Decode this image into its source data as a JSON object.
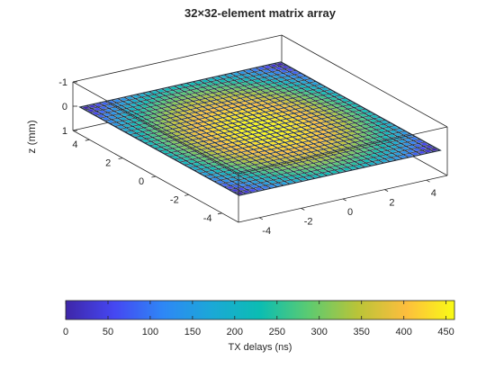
{
  "chart_data": {
    "type": "surface",
    "title": "32×32-element matrix array",
    "zlabel": "z (mm)",
    "colorbar_label": "TX delays (ns)",
    "grid": {
      "rows": 32,
      "cols": 32,
      "x_range": [
        -4.8,
        4.8
      ],
      "y_range": [
        -4.8,
        4.8
      ],
      "z": 0
    },
    "delay_min_ns": 0,
    "delay_max_ns": 460,
    "delay_profile": "radial focusing, maximum at center, minimum at corners",
    "colormap": "parula",
    "x_ticks": [
      "-4",
      "-2",
      "0",
      "2",
      "4"
    ],
    "y_ticks": [
      "-4",
      "-2",
      "0",
      "2",
      "4"
    ],
    "z_ticks": [
      "-1",
      "0",
      "1"
    ],
    "colorbar_ticks": [
      "0",
      "50",
      "100",
      "150",
      "200",
      "250",
      "300",
      "350",
      "400",
      "450"
    ],
    "box": true,
    "grid_lines": false
  }
}
